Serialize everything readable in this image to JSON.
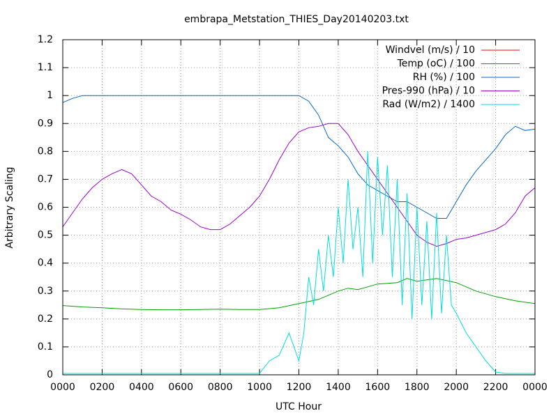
{
  "chart_data": {
    "type": "line",
    "title": "embrapa_Metstation_THIES_Day20140203.txt",
    "x_label": "UTC Hour",
    "y_label": "Arbitrary Scaling",
    "xlim": [
      0,
      24
    ],
    "ylim": [
      0,
      1.2
    ],
    "xticks": [
      {
        "value": 0,
        "label": "0000"
      },
      {
        "value": 2,
        "label": "0200"
      },
      {
        "value": 4,
        "label": "0400"
      },
      {
        "value": 6,
        "label": "0600"
      },
      {
        "value": 8,
        "label": "0800"
      },
      {
        "value": 10,
        "label": "1000"
      },
      {
        "value": 12,
        "label": "1200"
      },
      {
        "value": 14,
        "label": "1400"
      },
      {
        "value": 16,
        "label": "1600"
      },
      {
        "value": 18,
        "label": "1800"
      },
      {
        "value": 20,
        "label": "2000"
      },
      {
        "value": 22,
        "label": "2200"
      },
      {
        "value": 24,
        "label": "0000"
      }
    ],
    "yticks": [
      0,
      0.1,
      0.2,
      0.3,
      0.4,
      0.5,
      0.6,
      0.7,
      0.8,
      0.9,
      1,
      1.1,
      1.2
    ],
    "grid": true,
    "legend": "top-right",
    "series": [
      {
        "name": "Windvel (m/s) / 10",
        "color": "#ff0000",
        "x": [
          0,
          24
        ],
        "values": [
          0,
          0
        ]
      },
      {
        "name": "Temp (oC) / 100",
        "color": "#00a000",
        "x": [
          0,
          1,
          2,
          3,
          4,
          5,
          6,
          7,
          8,
          9,
          10,
          11,
          12,
          13,
          14,
          14.5,
          15,
          16,
          17,
          17.5,
          18,
          19,
          20,
          21,
          22,
          23,
          24
        ],
        "values": [
          0.248,
          0.243,
          0.24,
          0.236,
          0.234,
          0.233,
          0.233,
          0.234,
          0.235,
          0.234,
          0.234,
          0.24,
          0.255,
          0.27,
          0.3,
          0.31,
          0.305,
          0.325,
          0.33,
          0.345,
          0.335,
          0.345,
          0.33,
          0.3,
          0.28,
          0.265,
          0.255
        ]
      },
      {
        "name": "RH (%) / 100",
        "color": "#0066cc",
        "x": [
          0,
          0.5,
          1,
          12,
          12.5,
          13,
          13.5,
          14,
          14.5,
          15,
          15.5,
          16,
          16.5,
          17,
          17.5,
          18,
          18.5,
          19,
          19.5,
          20,
          20.5,
          21,
          21.5,
          22,
          22.5,
          23,
          23.5,
          24
        ],
        "values": [
          0.975,
          0.99,
          1,
          1,
          0.98,
          0.93,
          0.85,
          0.82,
          0.78,
          0.72,
          0.68,
          0.66,
          0.64,
          0.62,
          0.62,
          0.6,
          0.58,
          0.56,
          0.56,
          0.62,
          0.68,
          0.73,
          0.77,
          0.81,
          0.86,
          0.89,
          0.875,
          0.88
        ]
      },
      {
        "name": "Pres-990 (hPa) / 10",
        "color": "#9900cc",
        "x": [
          0,
          0.5,
          1,
          1.5,
          2,
          2.5,
          3,
          3.5,
          4,
          4.5,
          5,
          5.5,
          6,
          6.5,
          7,
          7.5,
          8,
          8.5,
          9,
          9.5,
          10,
          10.5,
          11,
          11.5,
          12,
          12.5,
          13,
          13.5,
          14,
          14.5,
          15,
          15.5,
          16,
          16.5,
          17,
          17.5,
          18,
          18.5,
          19,
          19.5,
          20,
          20.5,
          21,
          21.5,
          22,
          22.5,
          23,
          23.5,
          24
        ],
        "values": [
          0.53,
          0.58,
          0.63,
          0.67,
          0.7,
          0.72,
          0.735,
          0.72,
          0.68,
          0.64,
          0.62,
          0.59,
          0.575,
          0.555,
          0.53,
          0.52,
          0.52,
          0.54,
          0.57,
          0.6,
          0.64,
          0.7,
          0.77,
          0.83,
          0.87,
          0.885,
          0.89,
          0.9,
          0.9,
          0.86,
          0.8,
          0.75,
          0.7,
          0.65,
          0.6,
          0.55,
          0.5,
          0.475,
          0.46,
          0.47,
          0.485,
          0.49,
          0.5,
          0.51,
          0.52,
          0.54,
          0.58,
          0.64,
          0.67
        ]
      },
      {
        "name": "Rad (W/m2) / 1400",
        "color": "#00dddd",
        "x": [
          0,
          10,
          10.5,
          11,
          11.5,
          12,
          12.25,
          12.5,
          12.75,
          13,
          13.25,
          13.5,
          13.75,
          14,
          14.25,
          14.5,
          14.75,
          15,
          15.25,
          15.5,
          15.75,
          16,
          16.25,
          16.5,
          16.75,
          17,
          17.25,
          17.5,
          17.75,
          18,
          18.25,
          18.5,
          18.75,
          19,
          19.25,
          19.5,
          19.75,
          20,
          20.5,
          21,
          21.5,
          22,
          22.5,
          24
        ],
        "values": [
          0.005,
          0.005,
          0.05,
          0.07,
          0.15,
          0.05,
          0.15,
          0.35,
          0.25,
          0.45,
          0.3,
          0.5,
          0.35,
          0.6,
          0.4,
          0.7,
          0.45,
          0.6,
          0.35,
          0.8,
          0.4,
          0.78,
          0.5,
          0.75,
          0.35,
          0.7,
          0.25,
          0.65,
          0.2,
          0.6,
          0.25,
          0.55,
          0.2,
          0.58,
          0.22,
          0.5,
          0.25,
          0.22,
          0.15,
          0.1,
          0.05,
          0.01,
          0.005,
          0.005
        ]
      }
    ]
  }
}
